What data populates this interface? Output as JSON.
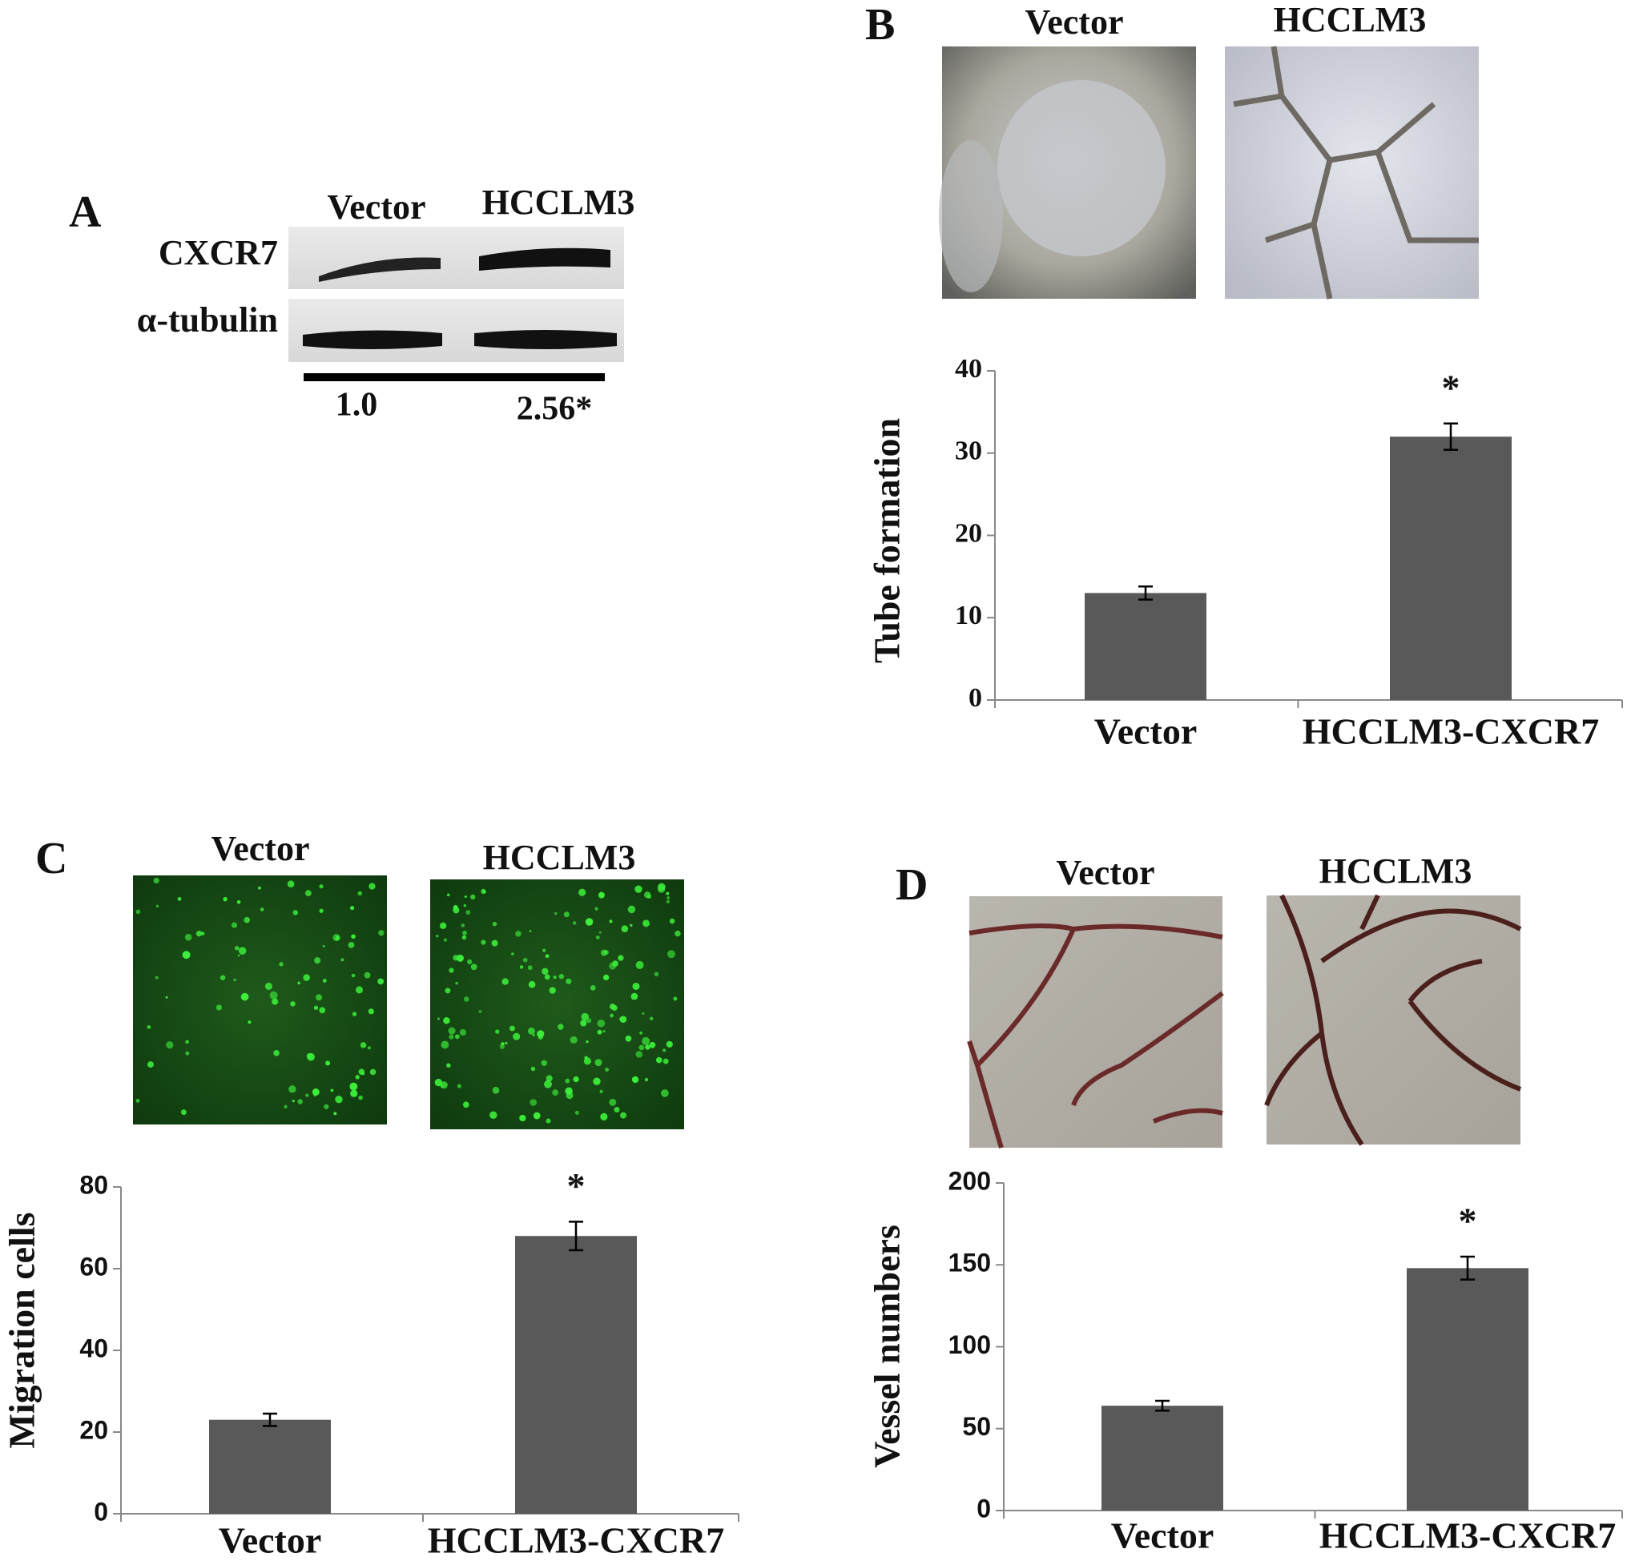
{
  "panels": {
    "A": {
      "letter": "A",
      "lanes": [
        "Vector",
        "HCCLM3"
      ],
      "rows": [
        "CXCR7",
        "α-tubulin"
      ],
      "ratios": [
        "1.0",
        "2.56*"
      ]
    },
    "B": {
      "letter": "B",
      "images": [
        "Vector",
        "HCCLM3"
      ]
    },
    "C": {
      "letter": "C",
      "images": [
        "Vector",
        "HCCLM3"
      ]
    },
    "D": {
      "letter": "D",
      "images": [
        "Vector",
        "HCCLM3"
      ]
    }
  },
  "chart_data": [
    {
      "type": "bar",
      "ylabel": "Tube formation",
      "categories": [
        "Vector",
        "HCCLM3-CXCR7"
      ],
      "values": [
        13,
        32
      ],
      "errors": [
        0.8,
        1.6
      ],
      "significance": [
        null,
        "*"
      ],
      "color": "#595959",
      "ylim": [
        0,
        40
      ],
      "yticks": [
        0,
        10,
        20,
        30,
        40
      ]
    },
    {
      "type": "bar",
      "ylabel": "Migration cells",
      "categories": [
        "Vector",
        "HCCLM3-CXCR7"
      ],
      "values": [
        23,
        68
      ],
      "errors": [
        1.5,
        3.5
      ],
      "significance": [
        null,
        "*"
      ],
      "color": "#595959",
      "ylim": [
        0,
        80
      ],
      "yticks": [
        0,
        20,
        40,
        60,
        80
      ]
    },
    {
      "type": "bar",
      "ylabel": "Vessel numbers",
      "categories": [
        "Vector",
        "HCCLM3-CXCR7"
      ],
      "values": [
        64,
        148
      ],
      "errors": [
        3,
        7
      ],
      "significance": [
        null,
        "*"
      ],
      "color": "#595959",
      "ylim": [
        0,
        200
      ],
      "yticks": [
        0,
        50,
        100,
        150,
        200
      ]
    }
  ]
}
